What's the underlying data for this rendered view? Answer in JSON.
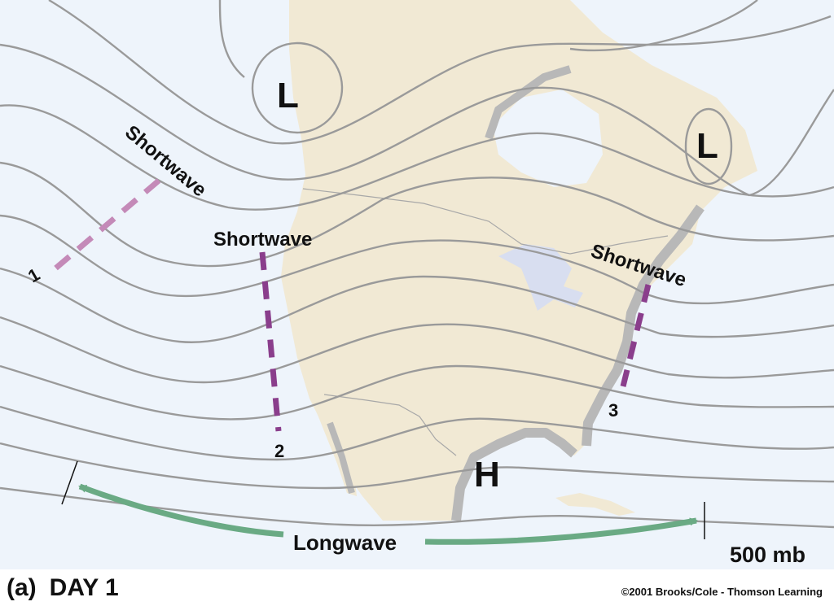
{
  "pressure_level": "500 mb",
  "caption": {
    "panel": "(a)",
    "title": "DAY 1"
  },
  "copyright": "©2001 Brooks/Cole - Thomson Learning",
  "lows": [
    "L",
    "L"
  ],
  "high": "H",
  "shortwaves": [
    {
      "label": "Shortwave",
      "number": "1"
    },
    {
      "label": "Shortwave",
      "number": "2"
    },
    {
      "label": "Shortwave",
      "number": "3"
    }
  ],
  "longwave": {
    "label": "Longwave"
  },
  "colors": {
    "ocean": "#eef4fb",
    "land": "#f1e9d4",
    "contour": "#9a9a9a",
    "shortwave_light": "#c48ab8",
    "shortwave_dark": "#8a3e8c",
    "longwave_arrow": "#6aaa84"
  }
}
